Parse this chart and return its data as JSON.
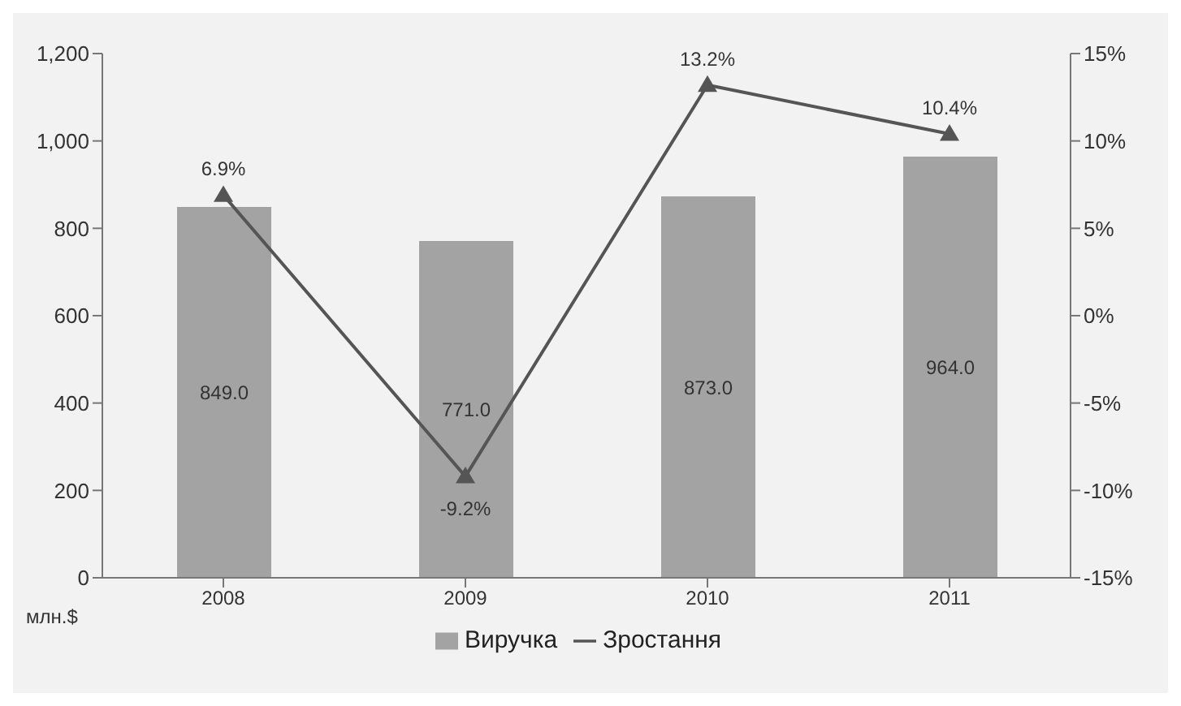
{
  "chart_data": {
    "type": "bar",
    "categories": [
      "2008",
      "2009",
      "2010",
      "2011"
    ],
    "series": [
      {
        "name": "Виручка",
        "color": "#a3a3a3",
        "values": [
          849,
          771,
          873,
          964
        ],
        "value_labels": [
          "849.0",
          "771.0",
          "873.0",
          "964.0"
        ]
      },
      {
        "name": "Зростання",
        "type": "line",
        "axis": "y2",
        "color": "#555555",
        "marker": "triangle",
        "values": [
          6.9,
          -9.2,
          13.2,
          10.4
        ],
        "value_labels": [
          "6.9%",
          "-9.2%",
          "13.2%",
          "10.4%"
        ]
      }
    ],
    "ylim": [
      0,
      1200
    ],
    "yticks": [
      0,
      200,
      400,
      600,
      800,
      {
        "value": 1000,
        "label": "1,000"
      },
      {
        "value": 1200,
        "label": "1,200"
      }
    ],
    "y2lim": [
      -15,
      15
    ],
    "y2ticks": [
      {
        "value": -15,
        "label": "-15%"
      },
      {
        "value": -10,
        "label": "-10%"
      },
      {
        "value": -5,
        "label": "-5%"
      },
      {
        "value": 0,
        "label": "0%"
      },
      {
        "value": 5,
        "label": "5%"
      },
      {
        "value": 10,
        "label": "10%"
      },
      {
        "value": 15,
        "label": "15%"
      }
    ],
    "annotations": [
      "млн.$"
    ],
    "legend": "bottom",
    "grid": false
  }
}
